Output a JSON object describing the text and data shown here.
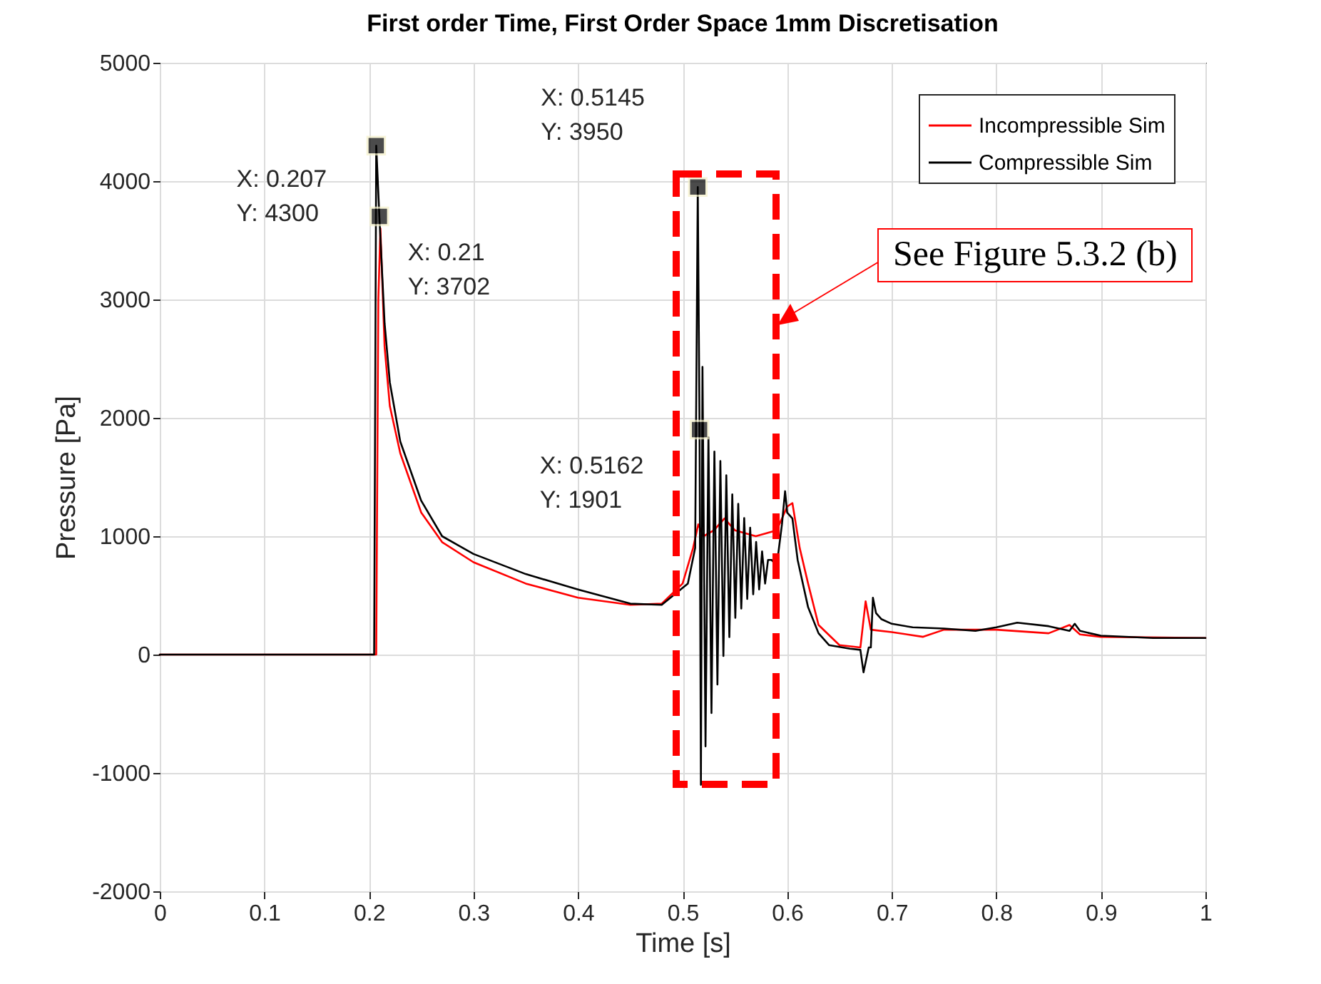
{
  "chart_data": {
    "type": "line",
    "title": "First order Time, First Order Space 1mm Discretisation",
    "xlabel": "Time [s]",
    "ylabel": "Pressure [Pa]",
    "xlim": [
      0,
      1
    ],
    "ylim": [
      -2000,
      5000
    ],
    "xticks": [
      0,
      0.1,
      0.2,
      0.3,
      0.4,
      0.5,
      0.6,
      0.7,
      0.8,
      0.9,
      1
    ],
    "yticks": [
      -2000,
      -1000,
      0,
      1000,
      2000,
      3000,
      4000,
      5000
    ],
    "grid": true,
    "legend": "top right",
    "line_style": "solid",
    "marker": "none",
    "series": [
      {
        "name": "Incompressible Sim",
        "color": "#ff0000",
        "x": [
          0,
          0.207,
          0.209,
          0.211,
          0.215,
          0.22,
          0.23,
          0.25,
          0.27,
          0.3,
          0.35,
          0.4,
          0.45,
          0.48,
          0.5,
          0.51,
          0.515,
          0.52,
          0.53,
          0.54,
          0.55,
          0.57,
          0.59,
          0.6,
          0.605,
          0.612,
          0.62,
          0.63,
          0.65,
          0.67,
          0.675,
          0.68,
          0.7,
          0.73,
          0.75,
          0.8,
          0.85,
          0.87,
          0.88,
          0.9,
          1
        ],
        "values": [
          0,
          0,
          3000,
          3600,
          2600,
          2100,
          1700,
          1200,
          950,
          780,
          600,
          480,
          420,
          430,
          600,
          900,
          1100,
          1000,
          1050,
          1150,
          1050,
          1000,
          1050,
          1250,
          1280,
          900,
          600,
          250,
          80,
          60,
          450,
          210,
          190,
          150,
          210,
          210,
          180,
          250,
          170,
          150,
          140
        ]
      },
      {
        "name": "Compressible Sim",
        "color": "#000000",
        "x": [
          0,
          0.205,
          0.207,
          0.21,
          0.215,
          0.22,
          0.23,
          0.25,
          0.27,
          0.3,
          0.35,
          0.4,
          0.45,
          0.48,
          0.505,
          0.512,
          0.5145,
          0.5162,
          0.5175,
          0.519,
          0.5219,
          0.5247,
          0.5276,
          0.5304,
          0.5333,
          0.5361,
          0.539,
          0.5418,
          0.5447,
          0.5475,
          0.5504,
          0.5532,
          0.5561,
          0.5589,
          0.5618,
          0.5646,
          0.5675,
          0.5703,
          0.5732,
          0.576,
          0.5789,
          0.5817,
          0.585,
          0.59,
          0.595,
          0.598,
          0.6,
          0.605,
          0.61,
          0.62,
          0.63,
          0.64,
          0.66,
          0.67,
          0.673,
          0.678,
          0.68,
          0.682,
          0.685,
          0.69,
          0.7,
          0.72,
          0.75,
          0.78,
          0.8,
          0.82,
          0.85,
          0.87,
          0.875,
          0.88,
          0.9,
          0.95,
          1
        ],
        "values": [
          0,
          0,
          4300,
          3702,
          2800,
          2300,
          1800,
          1300,
          1000,
          850,
          680,
          550,
          430,
          420,
          600,
          900,
          3950,
          1901,
          -1100,
          2430,
          -775,
          1835,
          -494,
          1715,
          -253,
          1635,
          -12,
          1515,
          148,
          1354,
          310,
          1274,
          389,
          1153,
          470,
          1072,
          510,
          952,
          550,
          871,
          600,
          800,
          800,
          750,
          1100,
          1380,
          1200,
          1150,
          800,
          400,
          180,
          80,
          50,
          40,
          -150,
          60,
          60,
          480,
          350,
          300,
          260,
          230,
          220,
          200,
          230,
          270,
          240,
          200,
          260,
          200,
          160,
          140,
          140
        ]
      }
    ],
    "annotations": [
      {
        "text": "X: 0.207\nY: 4300",
        "x": 0.207,
        "y": 4300
      },
      {
        "text": "X: 0.21\nY: 3702",
        "x": 0.21,
        "y": 3702
      },
      {
        "text": "X: 0.5145\nY: 3950",
        "x": 0.5145,
        "y": 3950
      },
      {
        "text": "X: 0.5162\nY: 1901",
        "x": 0.5162,
        "y": 1901
      },
      "See Figure 5.3.2 (b)"
    ]
  }
}
